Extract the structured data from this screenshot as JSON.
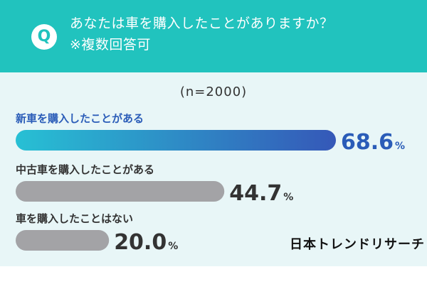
{
  "header": {
    "badge": "Q",
    "question": "あなたは車を購入したことがありますか？",
    "note": "※複数回答可"
  },
  "sample_size": "(n=2000)",
  "brand": "日本トレンドリサーチ",
  "colors": {
    "header_bg": "#21c3be",
    "highlight_bar_start": "#27c0d4",
    "highlight_bar_end": "#3558b8",
    "highlight_value": "#2a5cb8",
    "gray_bar": "#a3a3a6",
    "dark_text": "#333333"
  },
  "chart_data": {
    "type": "bar",
    "orientation": "horizontal",
    "categories": [
      "新車を購入したことがある",
      "中古車を購入したことがある",
      "車を購入したことはない"
    ],
    "values": [
      68.6,
      44.7,
      20.0
    ],
    "value_labels": [
      "68.6",
      "44.7",
      "20.0"
    ],
    "unit": "%",
    "highlight_index": 0,
    "xlim": [
      0,
      100
    ],
    "grid": false
  }
}
